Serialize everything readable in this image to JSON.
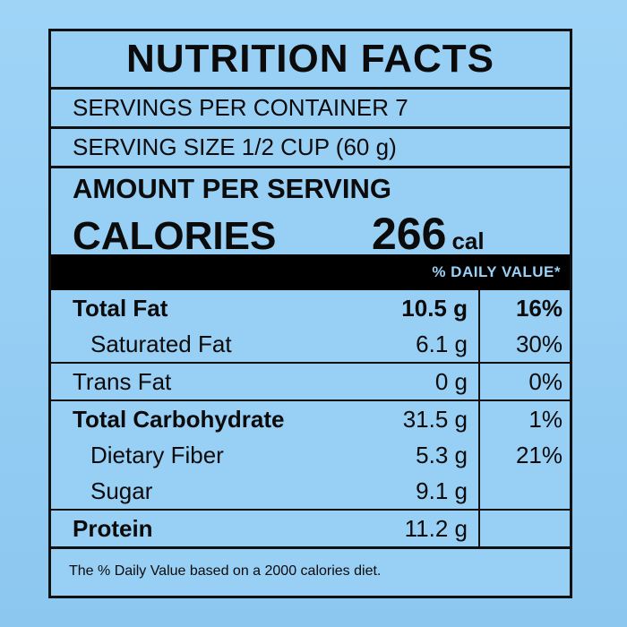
{
  "label": {
    "title": "NUTRITION FACTS",
    "servings_per_container": "SERVINGS PER CONTAINER 7",
    "serving_size": "SERVING SIZE 1/2 CUP (60 g)",
    "amount_per_serving": "AMOUNT PER SERVING",
    "calories_label": "CALORIES",
    "calories_value": "266",
    "calories_unit": "cal",
    "daily_value_header": "% DAILY VALUE*",
    "nutrients": [
      {
        "name": "Total Fat",
        "amount": "10.5 g",
        "dv": "16%"
      },
      {
        "name": "Saturated Fat",
        "amount": "6.1 g",
        "dv": "30%"
      },
      {
        "name": "Trans Fat",
        "amount": "0 g",
        "dv": "0%"
      },
      {
        "name": "Total Carbohydrate",
        "amount": "31.5 g",
        "dv": "1%"
      },
      {
        "name": "Dietary Fiber",
        "amount": "5.3 g",
        "dv": "21%"
      },
      {
        "name": "Sugar",
        "amount": "9.1 g",
        "dv": ""
      },
      {
        "name": "Protein",
        "amount": "11.2 g",
        "dv": ""
      }
    ],
    "footnote": "The % Daily Value based on a 2000 calories diet."
  }
}
